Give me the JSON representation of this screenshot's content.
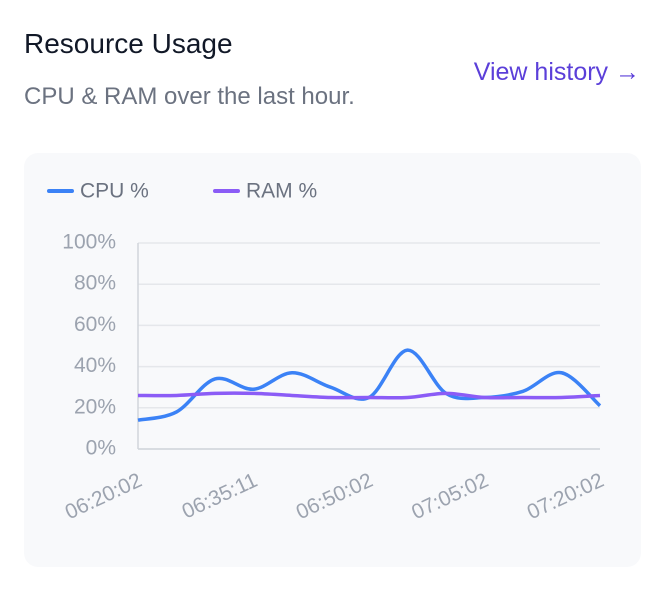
{
  "header": {
    "title": "Resource Usage",
    "subtitle": "CPU & RAM over the last hour.",
    "link": "View history →"
  },
  "chart_data": {
    "type": "line",
    "categories": [
      "06:20:02",
      null,
      null,
      "06:35:11",
      null,
      null,
      "06:50:02",
      null,
      null,
      "07:05:02",
      null,
      null,
      "07:20:02"
    ],
    "series": [
      {
        "name": "CPU %",
        "color": "#3b82f6",
        "values": [
          14,
          18,
          34,
          29,
          37,
          30,
          25,
          48,
          27,
          25,
          28,
          37,
          21
        ]
      },
      {
        "name": "RAM %",
        "color": "#8b5cf6",
        "values": [
          26,
          26,
          27,
          27,
          26,
          25,
          25,
          25,
          27,
          25,
          25,
          25,
          26
        ]
      }
    ],
    "ylim": [
      0,
      100
    ],
    "yticks": [
      {
        "value": 0,
        "label": "0%"
      },
      {
        "value": 20,
        "label": "20%"
      },
      {
        "value": 40,
        "label": "40%"
      },
      {
        "value": 60,
        "label": "60%"
      },
      {
        "value": 80,
        "label": "80%"
      },
      {
        "value": 100,
        "label": "100%"
      }
    ],
    "grid": true
  }
}
